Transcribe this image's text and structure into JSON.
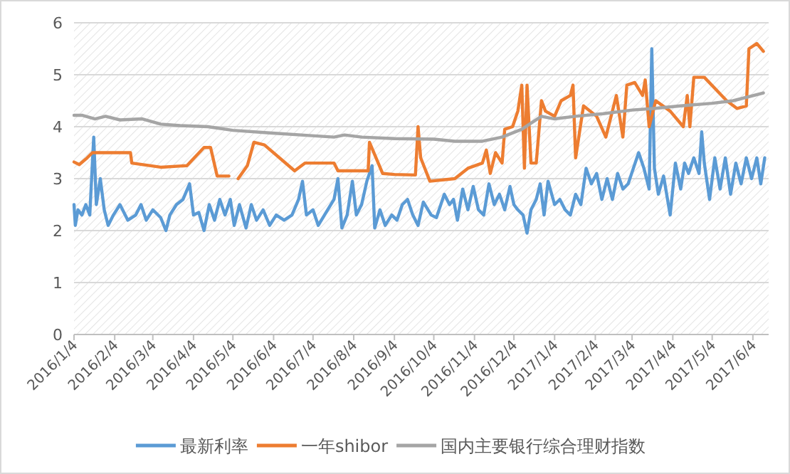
{
  "chart_data": {
    "type": "line",
    "legend": "bottom",
    "grid": "y",
    "marker": "none",
    "line_style": "solid",
    "xlim": [
      "2016-01-04",
      "2017-06-16"
    ],
    "ylim": [
      0,
      6
    ],
    "yticks": [
      0,
      1,
      2,
      3,
      4,
      5,
      6
    ],
    "xticks": [
      {
        "value": "2016-01-04",
        "label": "2016/1/4"
      },
      {
        "value": "2016-02-04",
        "label": "2016/2/4"
      },
      {
        "value": "2016-03-04",
        "label": "2016/3/4"
      },
      {
        "value": "2016-04-04",
        "label": "2016/4/4"
      },
      {
        "value": "2016-05-04",
        "label": "2016/5/4"
      },
      {
        "value": "2016-06-04",
        "label": "2016/6/4"
      },
      {
        "value": "2016-07-04",
        "label": "2016/7/4"
      },
      {
        "value": "2016-08-04",
        "label": "2016/8/4"
      },
      {
        "value": "2016-09-04",
        "label": "2016/9/4"
      },
      {
        "value": "2016-10-04",
        "label": "2016/10/4"
      },
      {
        "value": "2016-11-04",
        "label": "2016/11/4"
      },
      {
        "value": "2016-12-04",
        "label": "2016/12/4"
      },
      {
        "value": "2017-01-04",
        "label": "2017/1/4"
      },
      {
        "value": "2017-02-04",
        "label": "2017/2/4"
      },
      {
        "value": "2017-03-04",
        "label": "2017/3/4"
      },
      {
        "value": "2017-04-04",
        "label": "2017/4/4"
      },
      {
        "value": "2017-05-04",
        "label": "2017/5/4"
      },
      {
        "value": "2017-06-04",
        "label": "2017/6/4"
      }
    ],
    "series": [
      {
        "name": "最新利率",
        "color": "#5b9bd5",
        "x": [
          "2016-01-04",
          "2016-01-05",
          "2016-01-07",
          "2016-01-10",
          "2016-01-13",
          "2016-01-16",
          "2016-01-19",
          "2016-01-21",
          "2016-01-24",
          "2016-01-27",
          "2016-01-30",
          "2016-02-03",
          "2016-02-08",
          "2016-02-14",
          "2016-02-20",
          "2016-02-24",
          "2016-02-28",
          "2016-03-04",
          "2016-03-10",
          "2016-03-14",
          "2016-03-17",
          "2016-03-22",
          "2016-03-27",
          "2016-04-01",
          "2016-04-04",
          "2016-04-08",
          "2016-04-12",
          "2016-04-16",
          "2016-04-20",
          "2016-04-24",
          "2016-04-28",
          "2016-05-02",
          "2016-05-05",
          "2016-05-09",
          "2016-05-14",
          "2016-05-18",
          "2016-05-22",
          "2016-05-27",
          "2016-06-01",
          "2016-06-06",
          "2016-06-12",
          "2016-06-18",
          "2016-06-23",
          "2016-06-26",
          "2016-06-29",
          "2016-07-04",
          "2016-07-08",
          "2016-07-14",
          "2016-07-20",
          "2016-07-23",
          "2016-07-26",
          "2016-07-30",
          "2016-08-03",
          "2016-08-06",
          "2016-08-10",
          "2016-08-14",
          "2016-08-18",
          "2016-08-20",
          "2016-08-24",
          "2016-08-28",
          "2016-09-02",
          "2016-09-06",
          "2016-09-10",
          "2016-09-14",
          "2016-09-18",
          "2016-09-22",
          "2016-09-26",
          "2016-10-02",
          "2016-10-06",
          "2016-10-12",
          "2016-10-16",
          "2016-10-19",
          "2016-10-22",
          "2016-10-26",
          "2016-10-30",
          "2016-11-03",
          "2016-11-07",
          "2016-11-11",
          "2016-11-15",
          "2016-11-19",
          "2016-11-23",
          "2016-11-27",
          "2016-12-01",
          "2016-12-04",
          "2016-12-07",
          "2016-12-11",
          "2016-12-14",
          "2016-12-17",
          "2016-12-21",
          "2016-12-24",
          "2016-12-27",
          "2016-12-30",
          "2017-01-04",
          "2017-01-08",
          "2017-01-12",
          "2017-01-16",
          "2017-01-20",
          "2017-01-24",
          "2017-01-28",
          "2017-02-01",
          "2017-02-05",
          "2017-02-09",
          "2017-02-13",
          "2017-02-17",
          "2017-02-21",
          "2017-02-25",
          "2017-03-01",
          "2017-03-05",
          "2017-03-09",
          "2017-03-13",
          "2017-03-17",
          "2017-03-19",
          "2017-03-21",
          "2017-03-24",
          "2017-03-28",
          "2017-04-02",
          "2017-04-06",
          "2017-04-10",
          "2017-04-13",
          "2017-04-16",
          "2017-04-20",
          "2017-04-24",
          "2017-04-26",
          "2017-04-28",
          "2017-05-02",
          "2017-05-06",
          "2017-05-10",
          "2017-05-14",
          "2017-05-18",
          "2017-05-22",
          "2017-05-26",
          "2017-05-30",
          "2017-06-03",
          "2017-06-07",
          "2017-06-10",
          "2017-06-13"
        ],
        "values": [
          2.5,
          2.1,
          2.4,
          2.3,
          2.5,
          2.3,
          3.8,
          2.5,
          3.0,
          2.4,
          2.1,
          2.3,
          2.5,
          2.2,
          2.3,
          2.5,
          2.2,
          2.4,
          2.25,
          2.0,
          2.3,
          2.5,
          2.6,
          2.9,
          2.3,
          2.35,
          2.0,
          2.5,
          2.2,
          2.6,
          2.3,
          2.6,
          2.1,
          2.5,
          2.05,
          2.5,
          2.2,
          2.4,
          2.1,
          2.3,
          2.2,
          2.3,
          2.6,
          2.95,
          2.3,
          2.4,
          2.1,
          2.35,
          2.6,
          3.0,
          2.05,
          2.3,
          2.95,
          2.3,
          2.5,
          2.95,
          3.25,
          2.05,
          2.4,
          2.1,
          2.3,
          2.2,
          2.5,
          2.6,
          2.3,
          2.1,
          2.55,
          2.3,
          2.25,
          2.7,
          2.5,
          2.6,
          2.2,
          2.8,
          2.4,
          2.85,
          2.4,
          2.3,
          2.9,
          2.5,
          2.7,
          2.4,
          2.85,
          2.5,
          2.4,
          2.3,
          1.95,
          2.4,
          2.6,
          2.9,
          2.3,
          2.95,
          2.5,
          2.6,
          2.4,
          2.3,
          2.7,
          2.5,
          3.2,
          2.9,
          3.1,
          2.6,
          3.0,
          2.6,
          3.1,
          2.8,
          2.9,
          3.2,
          3.5,
          3.2,
          2.8,
          5.5,
          3.2,
          2.7,
          3.05,
          2.3,
          3.3,
          2.8,
          3.3,
          3.1,
          3.4,
          3.1,
          3.9,
          3.3,
          2.6,
          3.4,
          2.8,
          3.4,
          2.7,
          3.3,
          2.9,
          3.4,
          3.0,
          3.4,
          2.9,
          3.4
        ]
      },
      {
        "name": "一年shibor",
        "color": "#ed7d31",
        "x": [
          "2016-01-04",
          "2016-01-08",
          "2016-01-14",
          "2016-01-18",
          "2016-02-16",
          "2016-02-17",
          "2016-03-10",
          "2016-03-30",
          "2016-04-12",
          "2016-04-17",
          "2016-04-22",
          "2016-05-01",
          "2016-05-04",
          "2016-05-08",
          "2016-05-15",
          "2016-05-20",
          "2016-05-28",
          "2016-06-20",
          "2016-06-28",
          "2016-07-20",
          "2016-07-23",
          "2016-08-15",
          "2016-08-16",
          "2016-08-26",
          "2016-09-04",
          "2016-09-20",
          "2016-09-22",
          "2016-09-24",
          "2016-10-01",
          "2016-10-20",
          "2016-10-30",
          "2016-11-10",
          "2016-11-13",
          "2016-11-16",
          "2016-11-20",
          "2016-11-25",
          "2016-11-27",
          "2016-12-03",
          "2016-12-07",
          "2016-12-10",
          "2016-12-12",
          "2016-12-14",
          "2016-12-17",
          "2016-12-21",
          "2016-12-25",
          "2016-12-28",
          "2017-01-04",
          "2017-01-09",
          "2017-01-16",
          "2017-01-18",
          "2017-01-20",
          "2017-01-26",
          "2017-02-05",
          "2017-02-12",
          "2017-02-20",
          "2017-02-25",
          "2017-02-28",
          "2017-03-06",
          "2017-03-12",
          "2017-03-14",
          "2017-03-17",
          "2017-03-22",
          "2017-04-02",
          "2017-04-12",
          "2017-04-15",
          "2017-04-17",
          "2017-04-20",
          "2017-04-28",
          "2017-05-15",
          "2017-05-23",
          "2017-05-30",
          "2017-06-01",
          "2017-06-07",
          "2017-06-12"
        ],
        "values": [
          3.32,
          3.27,
          3.4,
          3.5,
          3.5,
          3.3,
          3.22,
          3.25,
          3.6,
          3.6,
          3.05,
          3.05,
          null,
          3.0,
          3.25,
          3.7,
          3.65,
          3.15,
          3.3,
          3.3,
          3.15,
          3.15,
          3.7,
          3.1,
          3.08,
          3.07,
          4.0,
          3.4,
          2.95,
          3.0,
          3.2,
          3.3,
          3.55,
          3.1,
          3.5,
          3.3,
          3.95,
          4.0,
          4.3,
          4.8,
          3.2,
          4.8,
          3.3,
          3.3,
          4.5,
          4.3,
          4.2,
          4.5,
          4.6,
          4.8,
          3.4,
          4.4,
          4.2,
          3.8,
          4.6,
          3.8,
          4.8,
          4.85,
          4.6,
          4.9,
          4.0,
          4.5,
          4.3,
          4.0,
          4.6,
          4.0,
          4.95,
          4.95,
          4.5,
          4.35,
          4.4,
          5.5,
          5.6,
          5.45
        ]
      },
      {
        "name": "国内主要银行综合理财指数",
        "color": "#a5a5a5",
        "x": [
          "2016-01-04",
          "2016-01-10",
          "2016-01-20",
          "2016-01-28",
          "2016-02-08",
          "2016-02-25",
          "2016-03-10",
          "2016-03-25",
          "2016-04-15",
          "2016-05-04",
          "2016-06-01",
          "2016-07-01",
          "2016-07-20",
          "2016-07-28",
          "2016-08-10",
          "2016-09-04",
          "2016-10-04",
          "2016-10-20",
          "2016-11-10",
          "2016-11-25",
          "2016-12-10",
          "2016-12-25",
          "2017-01-04",
          "2017-01-20",
          "2017-02-10",
          "2017-03-04",
          "2017-03-20",
          "2017-04-10",
          "2017-05-04",
          "2017-05-20",
          "2017-06-12"
        ],
        "values": [
          4.22,
          4.22,
          4.15,
          4.2,
          4.13,
          4.15,
          4.05,
          4.02,
          4.0,
          3.93,
          3.88,
          3.83,
          3.8,
          3.84,
          3.8,
          3.77,
          3.76,
          3.72,
          3.72,
          3.8,
          3.95,
          4.2,
          4.15,
          4.2,
          4.25,
          4.32,
          4.35,
          4.4,
          4.45,
          4.5,
          4.65
        ]
      }
    ]
  }
}
